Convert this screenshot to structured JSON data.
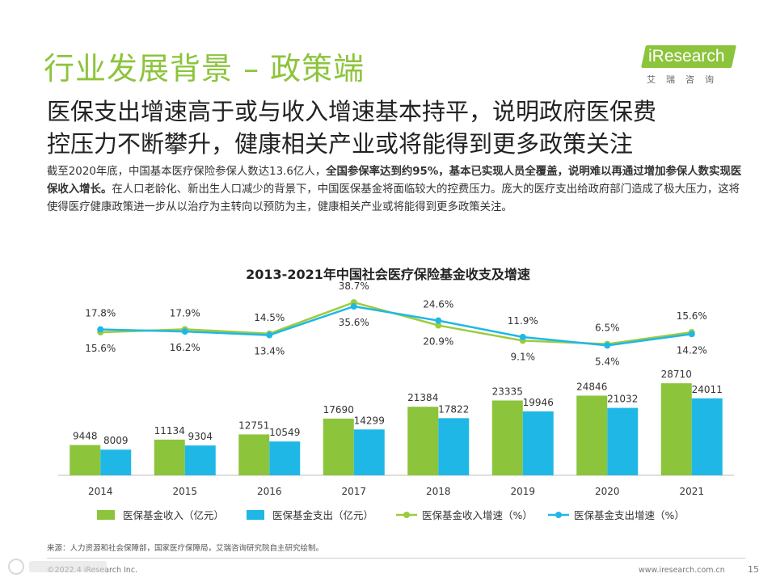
{
  "page": {
    "title": "行业发展背景 – 政策端",
    "headline_line1": "医保支出增速高于或与收入增速基本持平，说明政府医保费",
    "headline_line2": "控压力不断攀升，健康相关产业或将能得到更多政策关注",
    "body_1": "截至2020年底，中国基本医疗保险参保人数达13.6亿人，",
    "body_2_bold": "全国参保率达到约95%，基本已实现人员全覆盖，说明难以再通过增加参保人数实现医保收入增长。",
    "body_3": "在人口老龄化、新出生人口减少的背景下，中国医保基金将面临较大的控费压力。庞大的医疗支出给政府部门造成了极大压力，这将使得医疗健康政策进一步从以治疗为主转向以预防为主，健康相关产业或将能得到更多政策关注。",
    "source": "来源：人力资源和社会保障部，国家医疗保障局，艾瑞咨询研究院自主研究绘制。",
    "copyright": "©2022.4 iResearch Inc.",
    "site": "www.iresearch.com.cn",
    "page_number": "15"
  },
  "logo": {
    "brand": "iResearch",
    "sub": "艾瑞咨询"
  },
  "colors": {
    "green": "#8cc43c",
    "cyan": "#1fb8e6"
  },
  "chart_data": {
    "type": "bar",
    "title": "2013-2021年中国社会医疗保险基金收支及增速",
    "categories": [
      "2014",
      "2015",
      "2016",
      "2017",
      "2018",
      "2019",
      "2020",
      "2021"
    ],
    "series": [
      {
        "name": "医保基金收入（亿元）",
        "kind": "bar",
        "color": "#8cc43c",
        "values": [
          9448,
          11134,
          12751,
          17690,
          21384,
          23335,
          24846,
          28710
        ]
      },
      {
        "name": "医保基金支出（亿元）",
        "kind": "bar",
        "color": "#1fb8e6",
        "values": [
          8009,
          9304,
          10549,
          14299,
          17822,
          19946,
          21032,
          24011
        ]
      },
      {
        "name": "医保基金收入增速（%）",
        "kind": "line",
        "color": "#9ccc3c",
        "values": [
          15.6,
          17.9,
          14.5,
          38.7,
          20.9,
          9.1,
          6.5,
          15.6
        ],
        "labels": [
          "15.6%",
          "17.9%",
          "14.5%",
          "38.7%",
          "20.9%",
          "9.1%",
          "6.5%",
          "15.6%"
        ]
      },
      {
        "name": "医保基金支出增速（%）",
        "kind": "line",
        "color": "#1fb8e6",
        "values": [
          17.8,
          16.2,
          13.4,
          35.6,
          24.6,
          11.9,
          5.4,
          14.2
        ],
        "labels": [
          "17.8%",
          "16.2%",
          "13.4%",
          "35.6%",
          "24.6%",
          "11.9%",
          "5.4%",
          "14.2%"
        ]
      }
    ],
    "legend_position": "bottom",
    "grid": false
  }
}
